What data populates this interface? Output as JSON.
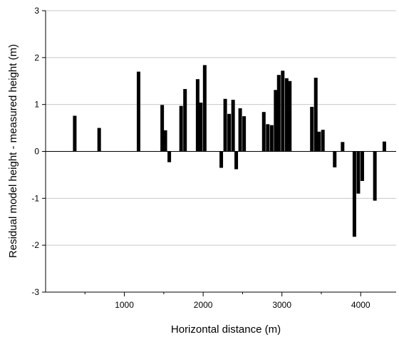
{
  "chart_data": {
    "type": "bar",
    "xlabel": "Horizontal distance (m)",
    "ylabel": "Residual model height - measured height (m)",
    "xlim": [
      0,
      4450
    ],
    "ylim": [
      -3,
      3
    ],
    "xticks": [
      1000,
      2000,
      3000,
      4000
    ],
    "yticks": [
      -3,
      -2,
      -1,
      0,
      1,
      2,
      3
    ],
    "xtick_labels": [
      "1000",
      "2000",
      "3000",
      "4000"
    ],
    "ytick_labels": [
      "-3",
      "-2",
      "-1",
      "0",
      "1",
      "2",
      "3"
    ],
    "grid": "horizontal",
    "bar_color": "#000000",
    "grid_color": "#c8c8c8",
    "x": [
      370,
      680,
      1180,
      1480,
      1520,
      1570,
      1720,
      1770,
      1930,
      1970,
      2020,
      2230,
      2280,
      2330,
      2380,
      2420,
      2470,
      2520,
      2770,
      2820,
      2870,
      2920,
      2960,
      3010,
      3060,
      3100,
      3380,
      3430,
      3470,
      3520,
      3670,
      3770,
      3920,
      3970,
      4020,
      4180,
      4300
    ],
    "values": [
      0.76,
      0.5,
      1.7,
      0.99,
      0.45,
      -0.23,
      0.97,
      1.33,
      1.54,
      1.04,
      1.84,
      -0.35,
      1.12,
      0.8,
      1.1,
      -0.38,
      0.92,
      0.75,
      0.84,
      0.58,
      0.56,
      1.31,
      1.63,
      1.72,
      1.56,
      1.5,
      0.95,
      1.57,
      0.42,
      0.46,
      -0.34,
      0.2,
      -1.82,
      -0.9,
      -0.63,
      -1.05,
      0.21
    ]
  }
}
